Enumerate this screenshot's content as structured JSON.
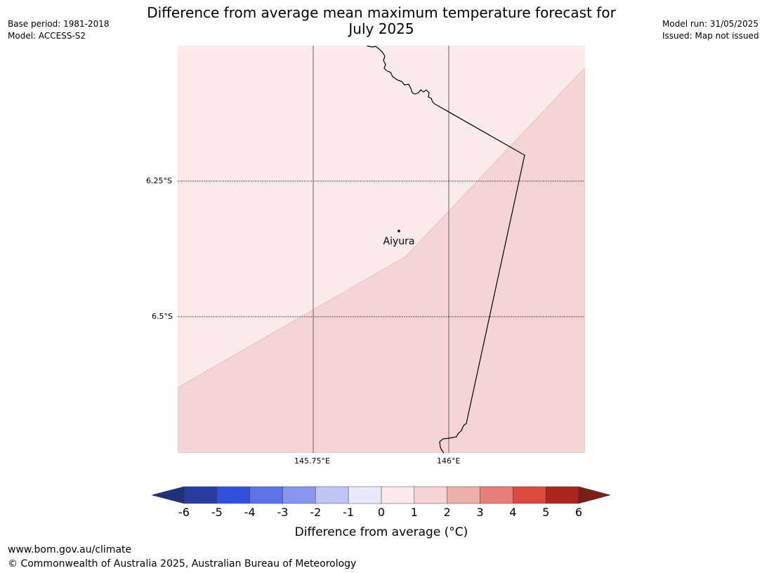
{
  "header": {
    "base_period": "Base period: 1981-2018",
    "model": "Model: ACCESS-S2",
    "model_run": "Model run: 31/05/2025",
    "issued": "Issued: Map not issued"
  },
  "title": {
    "line1": "Difference from average mean maximum temperature forecast for",
    "line2": "July 2025"
  },
  "map": {
    "latitude_labels": [
      "6.25°S",
      "6.5°S"
    ],
    "longitude_labels": [
      "145.75°E",
      "146°E"
    ],
    "place": "Aiyura",
    "anomaly_colors": {
      "zero_to_one": "#fbeaea",
      "one_to_two": "#f4d5d4"
    },
    "coastline_color": "#000000",
    "gridline_color": "#666666"
  },
  "colorbar": {
    "label": "Difference from average (°C)",
    "ticks": [
      "-6",
      "-5",
      "-4",
      "-3",
      "-2",
      "-1",
      "0",
      "1",
      "2",
      "3",
      "4",
      "5",
      "6"
    ],
    "bins": [
      "#2a3b9e",
      "#3350dd",
      "#5c73e6",
      "#8796ec",
      "#c0c6f4",
      "#e9ebfc",
      "#fbeaea",
      "#f4d5d4",
      "#eeafab",
      "#e7807a",
      "#da4a3e",
      "#a9261f"
    ],
    "under_color": "#20307a",
    "over_color": "#7a1e18"
  },
  "footer": {
    "website": "www.bom.gov.au/climate",
    "copyright": "© Commonwealth of Australia 2025, Australian Bureau of Meteorology"
  }
}
